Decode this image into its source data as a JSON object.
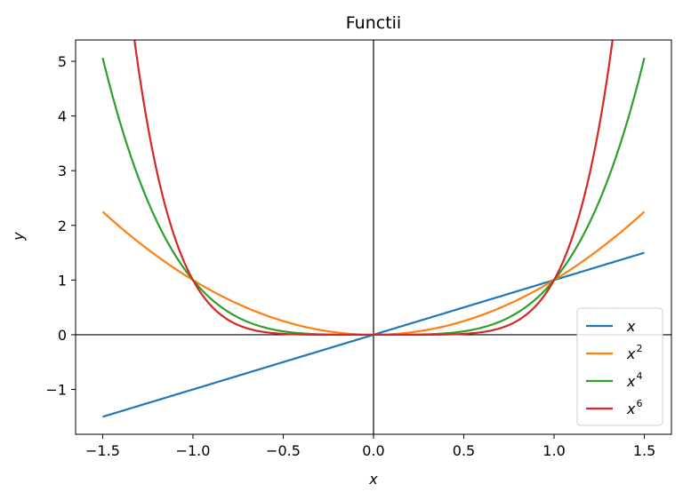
{
  "chart_data": {
    "type": "line",
    "title": "Functii",
    "xlabel": "x",
    "ylabel": "y",
    "xlim": [
      -1.65,
      1.65
    ],
    "ylim": [
      -1.82,
      5.39
    ],
    "xticks": [
      -1.5,
      -1.0,
      -0.5,
      0.0,
      0.5,
      1.0,
      1.5
    ],
    "xtick_labels": [
      "−1.5",
      "−1.0",
      "−0.5",
      "0.0",
      "0.5",
      "1.0",
      "1.5"
    ],
    "yticks": [
      -1,
      0,
      1,
      2,
      3,
      4,
      5
    ],
    "ytick_labels": [
      "−1",
      "0",
      "1",
      "2",
      "3",
      "4",
      "5"
    ],
    "grid": false,
    "reference_lines": {
      "x0": true,
      "y0": true,
      "color": "#000000"
    },
    "legend": {
      "placement": "bottom-right"
    },
    "x_domain": [
      -1.5,
      1.5
    ],
    "series": [
      {
        "name": "x",
        "base": "x",
        "exponent": "",
        "power": 1,
        "color": "#1f77b4"
      },
      {
        "name": "x^2",
        "base": "x",
        "exponent": "2",
        "power": 2,
        "color": "#ff7f0e"
      },
      {
        "name": "x^4",
        "base": "x",
        "exponent": "4",
        "power": 4,
        "color": "#2ca02c"
      },
      {
        "name": "x^6",
        "base": "x",
        "exponent": "6",
        "power": 6,
        "color": "#d62728"
      }
    ]
  }
}
